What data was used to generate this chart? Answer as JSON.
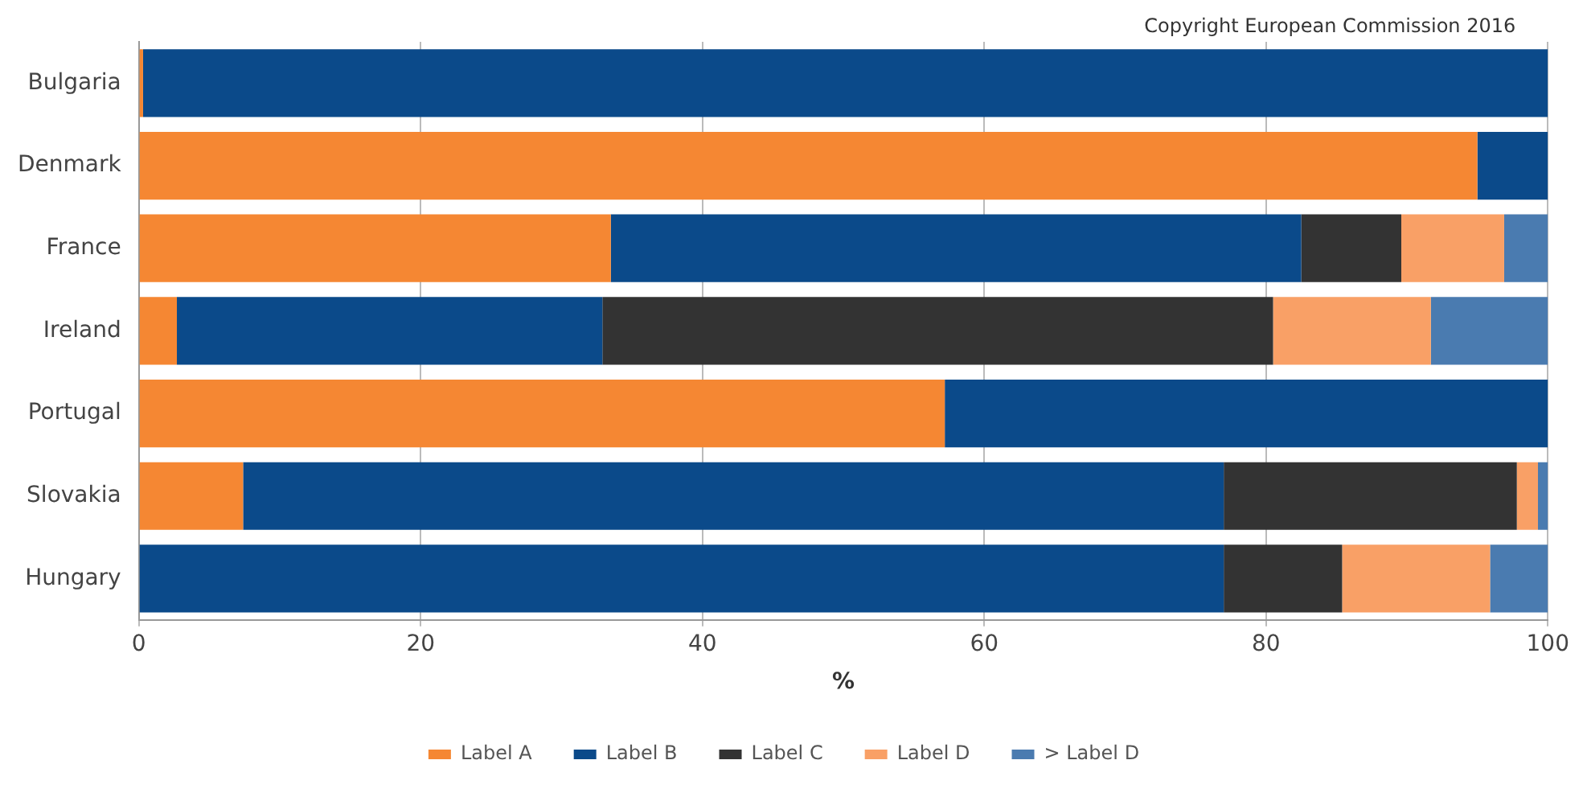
{
  "chart_data": {
    "type": "bar",
    "orientation": "horizontal",
    "stacked": true,
    "categories": [
      "Bulgaria",
      "Denmark",
      "France",
      "Ireland",
      "Portugal",
      "Slovakia",
      "Hungary"
    ],
    "series": [
      {
        "name": "Label A",
        "color": "#f58733",
        "values": [
          0.3,
          95,
          33.5,
          2.7,
          57.2,
          7.4,
          0
        ]
      },
      {
        "name": "Label B",
        "color": "#0b4a8a",
        "values": [
          99.7,
          5,
          49,
          30.2,
          42.8,
          69.6,
          77
        ]
      },
      {
        "name": "Label C",
        "color": "#333333",
        "values": [
          0,
          0,
          7.1,
          47.6,
          0,
          20.8,
          8.4
        ]
      },
      {
        "name": "Label D",
        "color": "#f9a066",
        "values": [
          0,
          0,
          7.3,
          11.2,
          0,
          1.5,
          10.5
        ]
      },
      {
        "name": "> Label D",
        "color": "#4a7bb0",
        "values": [
          0,
          0,
          3.1,
          8.3,
          0,
          0.7,
          4.1
        ]
      }
    ],
    "xlabel": "%",
    "xlim": [
      0,
      100
    ],
    "xticks": [
      0,
      20,
      40,
      60,
      80,
      100
    ],
    "grid": "x",
    "legend": "bottom",
    "annotations": [
      "Copyright European Commission 2016"
    ]
  }
}
